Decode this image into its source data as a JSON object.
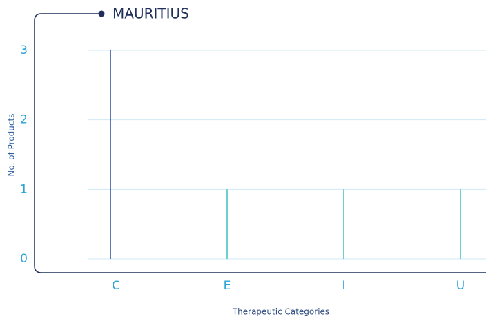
{
  "chart_data": {
    "type": "bar",
    "title": "MAURITIUS",
    "categories": [
      "C",
      "E",
      "I",
      "U"
    ],
    "values": [
      3,
      1,
      1,
      1
    ],
    "colors": [
      "#2b4a9c",
      "#3cc0c0",
      "#3cc0c0",
      "#3cc0c0"
    ],
    "ylim": [
      0,
      3
    ],
    "yticks": [
      0,
      1,
      2,
      3
    ],
    "grid": true,
    "y_label": "No. of Products",
    "x_label": "Therapeutic Categories"
  }
}
